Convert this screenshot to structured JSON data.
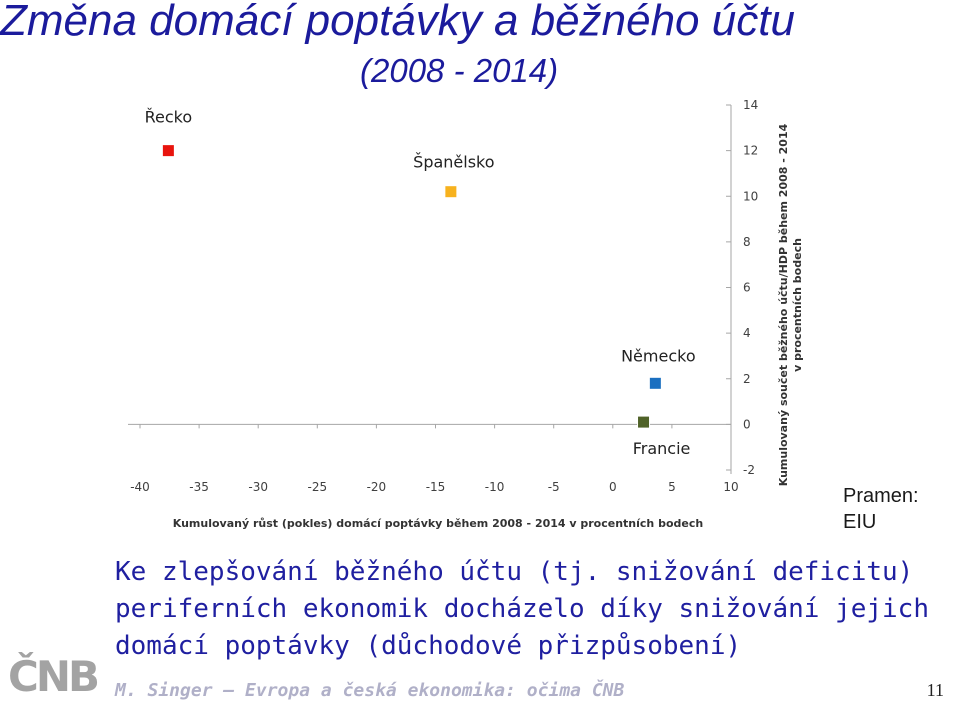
{
  "slide": {
    "title": "Změna domácí poptávky a běžného účtu",
    "subtitle": "(2008 - 2014)",
    "source": [
      "Pramen:",
      "EIU"
    ],
    "body": [
      "Ke zlepšování běžného účtu (tj. snižování deficitu)",
      "periferních ekonomik docházelo díky snižování jejich",
      "domácí poptávky (důchodové přizpůsobení)"
    ],
    "logo": "ČNB",
    "footer": "M. Singer – Evropa a česká ekonomika: očima ČNB",
    "page_number": "11"
  },
  "chart_data": {
    "type": "scatter",
    "xlabel": "Kumulovaný růst (pokles) domácí poptávky během 2008 - 2014 v procentních bodech",
    "ylabel": [
      "Kumulovaný součet běžného účtu/HDP během 2008 - 2014",
      "v procentních bodech"
    ],
    "xlim": [
      -40,
      10
    ],
    "ylim": [
      -2,
      14
    ],
    "xticks": [
      -40,
      -35,
      -30,
      -25,
      -20,
      -15,
      -10,
      -5,
      0,
      5,
      10
    ],
    "yticks": [
      -2,
      0,
      2,
      4,
      6,
      8,
      10,
      12,
      14
    ],
    "grid": false,
    "points": [
      {
        "label": "Řecko",
        "x": -37.6,
        "y": 12.0,
        "color": "#e8140d"
      },
      {
        "label": "Španělsko",
        "x": -13.7,
        "y": 10.2,
        "color": "#f7b21e"
      },
      {
        "label": "Německo",
        "x": 3.6,
        "y": 1.8,
        "color": "#1a6fc0"
      },
      {
        "label": "Francie",
        "x": 2.6,
        "y": 0.1,
        "color": "#4f6228"
      }
    ]
  }
}
